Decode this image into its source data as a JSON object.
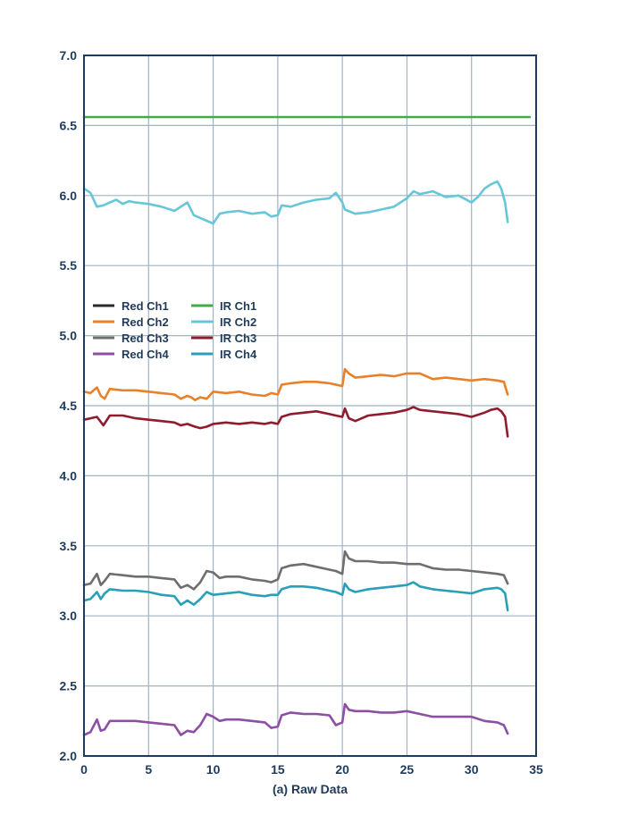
{
  "chart_data": {
    "type": "line",
    "title": "",
    "xlabel": "(a) Raw Data",
    "ylabel": "",
    "xlim": [
      0,
      35
    ],
    "ylim": [
      2.0,
      7.0
    ],
    "xticks": [
      "0",
      "5",
      "10",
      "15",
      "20",
      "25",
      "30",
      "35"
    ],
    "yticks": [
      "2.0",
      "2.5",
      "3.0",
      "3.5",
      "4.0",
      "4.5",
      "5.0",
      "5.5",
      "6.0",
      "6.5",
      "7.0"
    ],
    "grid": true,
    "legend_position": "center-left",
    "legend": [
      {
        "name": "Red Ch1",
        "color": "#2b2b2b"
      },
      {
        "name": "Red Ch2",
        "color": "#e8812a"
      },
      {
        "name": "Red Ch3",
        "color": "#6e6e6e"
      },
      {
        "name": "Red Ch4",
        "color": "#8d4fa3"
      },
      {
        "name": "IR Ch1",
        "color": "#3fae49"
      },
      {
        "name": "IR Ch2",
        "color": "#67c6d8"
      },
      {
        "name": "IR Ch3",
        "color": "#8e1c2e"
      },
      {
        "name": "IR Ch4",
        "color": "#2a9fb8"
      }
    ],
    "series": [
      {
        "name": "IR Ch1",
        "color": "#3fae49",
        "x": [
          0,
          34.5
        ],
        "y": [
          6.56,
          6.56
        ]
      },
      {
        "name": "IR Ch2",
        "color": "#67c6d8",
        "x": [
          0,
          0.5,
          1.0,
          1.5,
          2.0,
          2.5,
          3.0,
          3.5,
          4.0,
          5.0,
          6.0,
          7.0,
          7.5,
          8.0,
          8.5,
          9.0,
          9.5,
          10.0,
          10.5,
          11.0,
          12.0,
          13.0,
          14.0,
          14.5,
          15.0,
          15.3,
          16.0,
          17.0,
          18.0,
          19.0,
          19.5,
          20.0,
          20.2,
          21.0,
          22.0,
          23.0,
          24.0,
          25.0,
          25.5,
          26.0,
          27.0,
          28.0,
          29.0,
          30.0,
          30.5,
          31.0,
          31.5,
          32.0,
          32.3,
          32.6,
          32.8
        ],
        "y": [
          6.05,
          6.02,
          5.92,
          5.93,
          5.95,
          5.97,
          5.94,
          5.96,
          5.95,
          5.94,
          5.92,
          5.89,
          5.92,
          5.95,
          5.86,
          5.84,
          5.82,
          5.8,
          5.87,
          5.88,
          5.89,
          5.87,
          5.88,
          5.85,
          5.86,
          5.93,
          5.92,
          5.95,
          5.97,
          5.98,
          6.02,
          5.95,
          5.9,
          5.87,
          5.88,
          5.9,
          5.92,
          5.98,
          6.03,
          6.01,
          6.03,
          5.99,
          6.0,
          5.95,
          5.99,
          6.05,
          6.08,
          6.1,
          6.05,
          5.95,
          5.81
        ]
      },
      {
        "name": "Red Ch2",
        "color": "#e8812a",
        "x": [
          0,
          0.5,
          1.0,
          1.3,
          1.6,
          2.0,
          3.0,
          4.0,
          5.0,
          6.0,
          7.0,
          7.5,
          8.0,
          8.3,
          8.6,
          9.0,
          9.5,
          10.0,
          11.0,
          12.0,
          13.0,
          14.0,
          14.5,
          15.0,
          15.3,
          16.0,
          17.0,
          18.0,
          19.0,
          19.5,
          20.0,
          20.2,
          20.5,
          21.0,
          22.0,
          23.0,
          24.0,
          25.0,
          26.0,
          27.0,
          28.0,
          29.0,
          30.0,
          31.0,
          32.0,
          32.5,
          32.8
        ],
        "y": [
          4.6,
          4.59,
          4.63,
          4.57,
          4.55,
          4.62,
          4.61,
          4.61,
          4.6,
          4.59,
          4.58,
          4.55,
          4.57,
          4.56,
          4.54,
          4.56,
          4.55,
          4.6,
          4.59,
          4.6,
          4.58,
          4.57,
          4.59,
          4.58,
          4.65,
          4.66,
          4.67,
          4.67,
          4.66,
          4.65,
          4.64,
          4.76,
          4.73,
          4.7,
          4.71,
          4.72,
          4.71,
          4.73,
          4.73,
          4.69,
          4.7,
          4.69,
          4.68,
          4.69,
          4.68,
          4.67,
          4.58
        ]
      },
      {
        "name": "IR Ch3",
        "color": "#8e1c2e",
        "x": [
          0,
          0.5,
          1.0,
          1.5,
          2.0,
          3.0,
          4.0,
          5.0,
          6.0,
          7.0,
          7.5,
          8.0,
          8.3,
          8.6,
          9.0,
          9.5,
          10.0,
          11.0,
          12.0,
          13.0,
          14.0,
          14.5,
          15.0,
          15.3,
          16.0,
          17.0,
          18.0,
          19.0,
          19.5,
          20.0,
          20.2,
          20.5,
          21.0,
          22.0,
          23.0,
          24.0,
          25.0,
          25.5,
          26.0,
          27.0,
          28.0,
          29.0,
          30.0,
          31.0,
          31.5,
          32.0,
          32.3,
          32.6,
          32.8
        ],
        "y": [
          4.4,
          4.41,
          4.42,
          4.36,
          4.43,
          4.43,
          4.41,
          4.4,
          4.39,
          4.38,
          4.36,
          4.37,
          4.36,
          4.35,
          4.34,
          4.35,
          4.37,
          4.38,
          4.37,
          4.38,
          4.37,
          4.38,
          4.37,
          4.42,
          4.44,
          4.45,
          4.46,
          4.44,
          4.43,
          4.42,
          4.48,
          4.41,
          4.39,
          4.43,
          4.44,
          4.45,
          4.47,
          4.49,
          4.47,
          4.46,
          4.45,
          4.44,
          4.42,
          4.45,
          4.47,
          4.48,
          4.46,
          4.42,
          4.28
        ]
      },
      {
        "name": "Red Ch3",
        "color": "#6e6e6e",
        "x": [
          0,
          0.5,
          1.0,
          1.3,
          1.6,
          2.0,
          3.0,
          4.0,
          5.0,
          6.0,
          7.0,
          7.5,
          8.0,
          8.5,
          9.0,
          9.5,
          10.0,
          10.5,
          11.0,
          12.0,
          13.0,
          14.0,
          14.5,
          15.0,
          15.3,
          16.0,
          17.0,
          18.0,
          19.0,
          19.5,
          20.0,
          20.2,
          20.5,
          21.0,
          22.0,
          23.0,
          24.0,
          25.0,
          26.0,
          27.0,
          28.0,
          29.0,
          30.0,
          31.0,
          32.0,
          32.5,
          32.8
        ],
        "y": [
          3.22,
          3.23,
          3.3,
          3.22,
          3.25,
          3.3,
          3.29,
          3.28,
          3.28,
          3.27,
          3.26,
          3.2,
          3.22,
          3.19,
          3.24,
          3.32,
          3.31,
          3.27,
          3.28,
          3.28,
          3.26,
          3.25,
          3.24,
          3.26,
          3.34,
          3.36,
          3.37,
          3.35,
          3.33,
          3.32,
          3.3,
          3.46,
          3.41,
          3.39,
          3.39,
          3.38,
          3.38,
          3.37,
          3.37,
          3.34,
          3.33,
          3.33,
          3.32,
          3.31,
          3.3,
          3.29,
          3.23
        ]
      },
      {
        "name": "IR Ch4",
        "color": "#2a9fb8",
        "x": [
          0,
          0.5,
          1.0,
          1.3,
          1.6,
          2.0,
          3.0,
          4.0,
          5.0,
          6.0,
          7.0,
          7.5,
          8.0,
          8.5,
          9.0,
          9.5,
          10.0,
          11.0,
          12.0,
          13.0,
          14.0,
          14.5,
          15.0,
          15.3,
          16.0,
          17.0,
          18.0,
          19.0,
          19.5,
          20.0,
          20.2,
          20.5,
          21.0,
          22.0,
          23.0,
          24.0,
          25.0,
          25.5,
          26.0,
          27.0,
          28.0,
          29.0,
          30.0,
          31.0,
          32.0,
          32.3,
          32.6,
          32.8
        ],
        "y": [
          3.11,
          3.12,
          3.17,
          3.12,
          3.16,
          3.19,
          3.18,
          3.18,
          3.17,
          3.15,
          3.14,
          3.08,
          3.11,
          3.08,
          3.12,
          3.17,
          3.15,
          3.16,
          3.17,
          3.15,
          3.14,
          3.15,
          3.15,
          3.19,
          3.21,
          3.21,
          3.2,
          3.18,
          3.17,
          3.15,
          3.23,
          3.19,
          3.17,
          3.19,
          3.2,
          3.21,
          3.22,
          3.24,
          3.21,
          3.19,
          3.18,
          3.17,
          3.16,
          3.19,
          3.2,
          3.19,
          3.16,
          3.04
        ]
      },
      {
        "name": "Red Ch4",
        "color": "#8d4fa3",
        "x": [
          0,
          0.5,
          1.0,
          1.3,
          1.6,
          2.0,
          3.0,
          4.0,
          5.0,
          6.0,
          7.0,
          7.5,
          8.0,
          8.5,
          9.0,
          9.5,
          10.0,
          10.5,
          11.0,
          12.0,
          13.0,
          14.0,
          14.5,
          15.0,
          15.3,
          16.0,
          17.0,
          18.0,
          19.0,
          19.5,
          20.0,
          20.2,
          20.5,
          21.0,
          22.0,
          23.0,
          24.0,
          25.0,
          26.0,
          27.0,
          28.0,
          29.0,
          30.0,
          31.0,
          32.0,
          32.5,
          32.8
        ],
        "y": [
          2.15,
          2.17,
          2.26,
          2.18,
          2.19,
          2.25,
          2.25,
          2.25,
          2.24,
          2.23,
          2.22,
          2.15,
          2.18,
          2.17,
          2.22,
          2.3,
          2.28,
          2.25,
          2.26,
          2.26,
          2.25,
          2.24,
          2.2,
          2.21,
          2.29,
          2.31,
          2.3,
          2.3,
          2.29,
          2.22,
          2.24,
          2.37,
          2.33,
          2.32,
          2.32,
          2.31,
          2.31,
          2.32,
          2.3,
          2.28,
          2.28,
          2.28,
          2.28,
          2.25,
          2.24,
          2.22,
          2.16
        ]
      }
    ]
  }
}
